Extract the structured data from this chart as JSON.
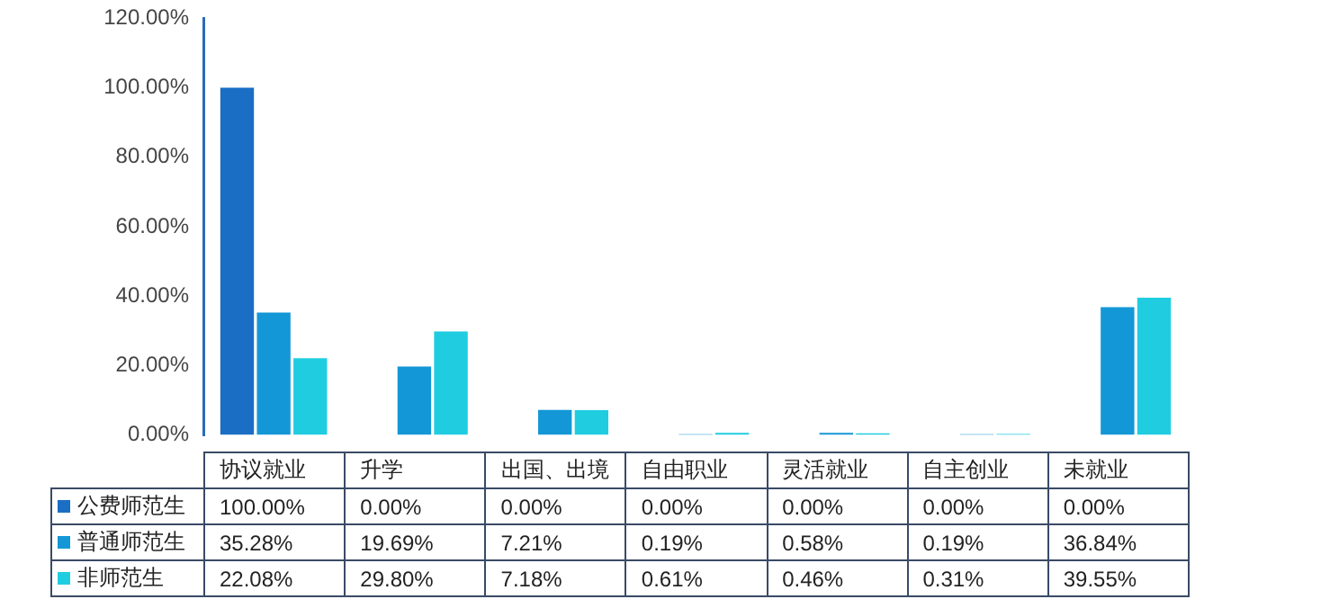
{
  "chart_data": {
    "type": "bar",
    "categories": [
      "协议就业",
      "升学",
      "出国、出境",
      "自由职业",
      "灵活就业",
      "自主创业",
      "未就业"
    ],
    "series": [
      {
        "name": "公费师范生",
        "color": "#1a6ec4",
        "values": [
          100,
          0,
          0,
          0,
          0,
          0,
          0
        ],
        "value_labels": [
          "100.00%",
          "0.00%",
          "0.00%",
          "0.00%",
          "0.00%",
          "0.00%",
          "0.00%"
        ]
      },
      {
        "name": "普通师范生",
        "color": "#1497d6",
        "values": [
          35.28,
          19.69,
          7.21,
          0.19,
          0.58,
          0.19,
          36.84
        ],
        "value_labels": [
          "35.28%",
          "19.69%",
          "7.21%",
          "0.19%",
          "0.58%",
          "0.19%",
          "36.84%"
        ]
      },
      {
        "name": "非师范生",
        "color": "#20cde0",
        "values": [
          22.08,
          29.8,
          7.18,
          0.61,
          0.46,
          0.31,
          39.55
        ],
        "value_labels": [
          "22.08%",
          "29.80%",
          "7.18%",
          "0.61%",
          "0.46%",
          "0.31%",
          "39.55%"
        ]
      }
    ],
    "ylim": [
      0,
      120
    ],
    "yticks": [
      {
        "value": 0,
        "label": "0.00%"
      },
      {
        "value": 20,
        "label": "20.00%"
      },
      {
        "value": 40,
        "label": "40.00%"
      },
      {
        "value": 60,
        "label": "60.00%"
      },
      {
        "value": 80,
        "label": "80.00%"
      },
      {
        "value": 100,
        "label": "100.00%"
      },
      {
        "value": 120,
        "label": "120.00%"
      }
    ],
    "grid": false,
    "legend": "bottom"
  }
}
